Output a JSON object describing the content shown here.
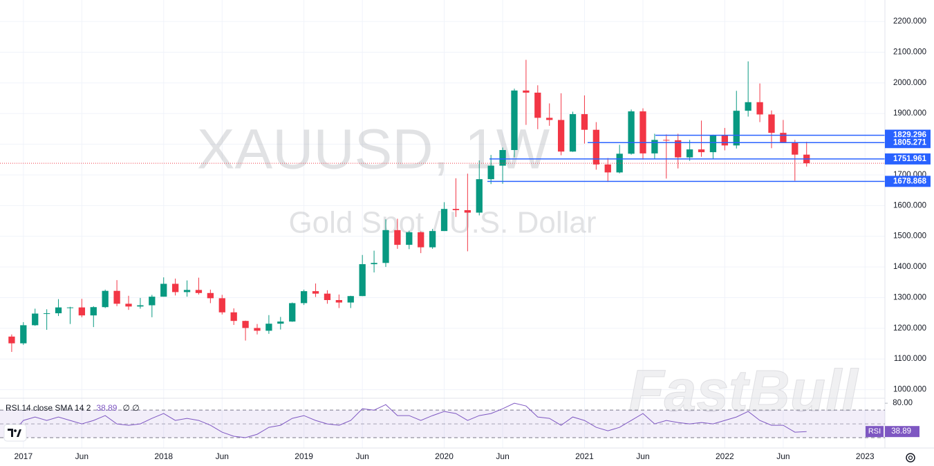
{
  "chart_data": [
    {
      "type": "candlestick",
      "title": "XAUUSD, 1W",
      "subtitle": "Gold Spot / U.S. Dollar",
      "watermark": "FastBull",
      "up_color": "#089981",
      "down_color": "#f23645",
      "open": [
        1173,
        1151,
        1210,
        1248,
        1249,
        1268,
        1268,
        1242,
        1269,
        1322,
        1280,
        1271,
        1275,
        1303,
        1345,
        1318,
        1325,
        1315,
        1298,
        1252,
        1224,
        1201,
        1192,
        1215,
        1222,
        1282,
        1321,
        1313,
        1292,
        1284,
        1305,
        1409,
        1413,
        1520,
        1472,
        1513,
        1464,
        1517,
        1589,
        1585,
        1577,
        1686,
        1730,
        1781,
        1975,
        1968,
        1886,
        1879,
        1776,
        1898,
        1847,
        1734,
        1708,
        1769,
        1907,
        1770,
        1814,
        1813,
        1757,
        1783,
        1774,
        1829,
        1796,
        1909,
        1937,
        1897,
        1837,
        1807,
        1766
      ],
      "high": [
        1180,
        1220,
        1264,
        1262,
        1295,
        1270,
        1296,
        1272,
        1326,
        1357,
        1306,
        1299,
        1309,
        1366,
        1362,
        1356,
        1365,
        1326,
        1309,
        1265,
        1225,
        1214,
        1243,
        1237,
        1284,
        1326,
        1346,
        1324,
        1310,
        1306,
        1439,
        1453,
        1555,
        1557,
        1518,
        1516,
        1524,
        1611,
        1689,
        1704,
        1747,
        1765,
        1789,
        1981,
        2075,
        1992,
        1933,
        1966,
        1906,
        1959,
        1872,
        1755,
        1798,
        1913,
        1917,
        1834,
        1832,
        1834,
        1814,
        1877,
        1831,
        1853,
        1974,
        2070,
        1998,
        1910,
        1879,
        1814,
        1808
      ],
      "low": [
        1123,
        1146,
        1208,
        1195,
        1240,
        1214,
        1236,
        1204,
        1266,
        1272,
        1260,
        1264,
        1236,
        1303,
        1307,
        1303,
        1310,
        1282,
        1245,
        1211,
        1160,
        1180,
        1182,
        1196,
        1221,
        1276,
        1302,
        1280,
        1266,
        1266,
        1305,
        1382,
        1400,
        1459,
        1458,
        1445,
        1459,
        1517,
        1563,
        1451,
        1568,
        1670,
        1671,
        1757,
        1863,
        1849,
        1860,
        1764,
        1775,
        1802,
        1717,
        1677,
        1705,
        1766,
        1750,
        1751,
        1688,
        1721,
        1746,
        1759,
        1753,
        1780,
        1786,
        1890,
        1872,
        1787,
        1805,
        1681,
        1727
      ],
      "close": [
        1151,
        1210,
        1248,
        1249,
        1268,
        1268,
        1242,
        1269,
        1322,
        1280,
        1271,
        1275,
        1303,
        1345,
        1318,
        1325,
        1315,
        1298,
        1252,
        1224,
        1201,
        1192,
        1215,
        1222,
        1282,
        1321,
        1313,
        1292,
        1284,
        1305,
        1409,
        1413,
        1520,
        1472,
        1513,
        1464,
        1517,
        1589,
        1585,
        1577,
        1686,
        1730,
        1781,
        1975,
        1968,
        1886,
        1879,
        1776,
        1898,
        1847,
        1734,
        1708,
        1769,
        1907,
        1770,
        1814,
        1813,
        1757,
        1783,
        1774,
        1829,
        1796,
        1909,
        1937,
        1897,
        1837,
        1807,
        1766,
        1738
      ],
      "levels": [
        1829.296,
        1805.271,
        1751.961,
        1678.868
      ],
      "level_color": "#2962ff",
      "ylim": [
        972,
        2270
      ],
      "yticks": [
        {
          "value": 1000,
          "label": "1000.000"
        },
        {
          "value": 1100,
          "label": "1100.000"
        },
        {
          "value": 1200,
          "label": "1200.000"
        },
        {
          "value": 1300,
          "label": "1300.000"
        },
        {
          "value": 1400,
          "label": "1400.000"
        },
        {
          "value": 1500,
          "label": "1500.000"
        },
        {
          "value": 1600,
          "label": "1600.000"
        },
        {
          "value": 1700,
          "label": "1700.000"
        },
        {
          "value": 1800,
          "label": "1800.000"
        },
        {
          "value": 1900,
          "label": "1900.000"
        },
        {
          "value": 2000,
          "label": "2000.000"
        },
        {
          "value": 2100,
          "label": "2100.000"
        },
        {
          "value": 2200,
          "label": "2200.000"
        }
      ],
      "xlim": [
        -1,
        74.7
      ],
      "xticks": [
        {
          "value": 1,
          "label": "2017"
        },
        {
          "value": 6,
          "label": "Jun"
        },
        {
          "value": 13,
          "label": "2018"
        },
        {
          "value": 18,
          "label": "Jun"
        },
        {
          "value": 25,
          "label": "2019"
        },
        {
          "value": 30,
          "label": "Jun"
        },
        {
          "value": 37,
          "label": "2020"
        },
        {
          "value": 42,
          "label": "Jun"
        },
        {
          "value": 49,
          "label": "2021"
        },
        {
          "value": 54,
          "label": "Jun"
        },
        {
          "value": 61,
          "label": "2022"
        },
        {
          "value": 66,
          "label": "Jun"
        },
        {
          "value": 73,
          "label": "2023"
        }
      ],
      "grid": true
    },
    {
      "type": "line",
      "title": "RSI 14 close SMA 14 2",
      "title_suffix": "∅ ∅",
      "tag": "RSI",
      "series": [
        {
          "name": "RSI",
          "color": "#7e57c2",
          "values": [
            35,
            55,
            60,
            55,
            60,
            55,
            50,
            55,
            62,
            50,
            48,
            50,
            58,
            65,
            55,
            58,
            55,
            48,
            38,
            32,
            30,
            35,
            45,
            48,
            58,
            62,
            55,
            50,
            48,
            55,
            72,
            70,
            78,
            62,
            62,
            55,
            62,
            68,
            65,
            55,
            62,
            65,
            72,
            80,
            76,
            60,
            58,
            48,
            60,
            55,
            45,
            40,
            45,
            55,
            65,
            50,
            55,
            52,
            50,
            52,
            50,
            55,
            60,
            68,
            55,
            48,
            48,
            38,
            38.89
          ]
        }
      ],
      "band": [
        30,
        50,
        70
      ],
      "ylim": [
        15,
        87.2
      ],
      "yticks": [
        {
          "value": 80,
          "label": "80.00"
        }
      ]
    }
  ]
}
